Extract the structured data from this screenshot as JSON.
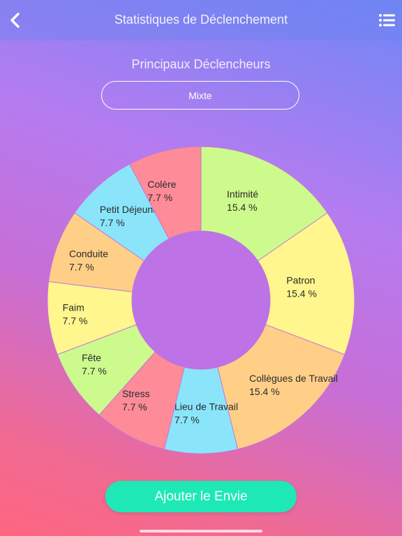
{
  "header": {
    "title": "Statistiques de Déclenchement",
    "back_icon": "chevron-left-icon",
    "menu_icon": "list-icon"
  },
  "section": {
    "title": "Principaux Déclencheurs",
    "mode_label": "Mixte"
  },
  "chart_data": {
    "type": "pie",
    "subtype": "donut",
    "title": "",
    "slices": [
      {
        "label": "Intimité",
        "value": 15.4,
        "value_label": "15.4 %",
        "color": "#cdfa8c"
      },
      {
        "label": "Patron",
        "value": 15.4,
        "value_label": "15.4 %",
        "color": "#fff68e"
      },
      {
        "label": "Collègues de Travail",
        "value": 15.4,
        "value_label": "15.4 %",
        "color": "#ffcf88"
      },
      {
        "label": "Lieu de Travail",
        "value": 7.7,
        "value_label": "7.7 %",
        "color": "#8ae5fb"
      },
      {
        "label": "Stress",
        "value": 7.7,
        "value_label": "7.7 %",
        "color": "#fd8b98"
      },
      {
        "label": "Fête",
        "value": 7.7,
        "value_label": "7.7 %",
        "color": "#cdfa8c"
      },
      {
        "label": "Faim",
        "value": 7.7,
        "value_label": "7.7 %",
        "color": "#fff68e"
      },
      {
        "label": "Conduite",
        "value": 7.7,
        "value_label": "7.7 %",
        "color": "#ffcf88"
      },
      {
        "label": "Petit Déjeuner",
        "value": 7.7,
        "value_label": "7.7 %",
        "color": "#8ae5fb"
      },
      {
        "label": "Colère",
        "value": 7.7,
        "value_label": "7.7 %",
        "color": "#fd8b98"
      }
    ],
    "center_color": "#bd72e6",
    "slice_border_color": "#c479d9"
  },
  "footer": {
    "add_button_label": "Ajouter le Envie"
  }
}
